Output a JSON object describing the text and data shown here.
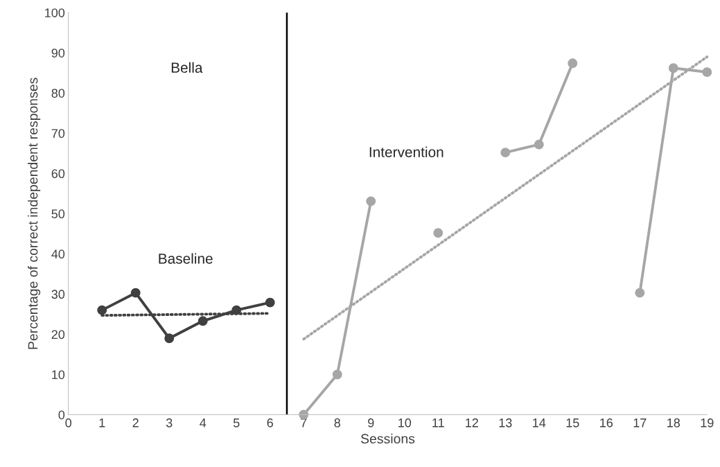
{
  "chart_data": {
    "type": "line",
    "xlabel": "Sessions",
    "ylabel": "Percentage of correct independent responses",
    "annotations": [
      "Bella",
      "Baseline",
      "Intervention"
    ],
    "series": [
      {
        "color": "#404040",
        "x": [
          1,
          2,
          3,
          4,
          5,
          6
        ],
        "values": [
          26,
          30.3,
          19,
          23.3,
          26,
          27.9
        ],
        "marker": "circle",
        "line_style": "solid"
      },
      {
        "color": "#404040",
        "x": [
          1,
          6
        ],
        "values": [
          24.7,
          25.2
        ],
        "marker": "none",
        "line_style": "dotted"
      },
      {
        "color": "#a6a6a6",
        "x": [
          7,
          8,
          9,
          10,
          11,
          12,
          13,
          14,
          15,
          16,
          17,
          18,
          19
        ],
        "values": [
          0,
          10,
          53.1,
          null,
          45.2,
          null,
          65.2,
          67.2,
          87.4,
          null,
          30.3,
          86.2,
          85.2
        ],
        "marker": "circle",
        "line_style": "solid"
      },
      {
        "color": "#a6a6a6",
        "x": [
          7,
          19
        ],
        "values": [
          18.8,
          89
        ],
        "marker": "none",
        "line_style": "dotted"
      }
    ],
    "ref_lines": [
      {
        "axis": "x",
        "value": 6.5,
        "color": "#000000",
        "line_style": "solid"
      }
    ],
    "xlim": [
      0,
      19
    ],
    "ylim": [
      0,
      100
    ],
    "xticks": [
      0,
      1,
      2,
      3,
      4,
      5,
      6,
      7,
      8,
      9,
      10,
      11,
      12,
      13,
      14,
      15,
      16,
      17,
      18,
      19
    ],
    "yticks": [
      0,
      10,
      20,
      30,
      40,
      50,
      60,
      70,
      80,
      90,
      100
    ],
    "grid": false,
    "legend": false
  }
}
